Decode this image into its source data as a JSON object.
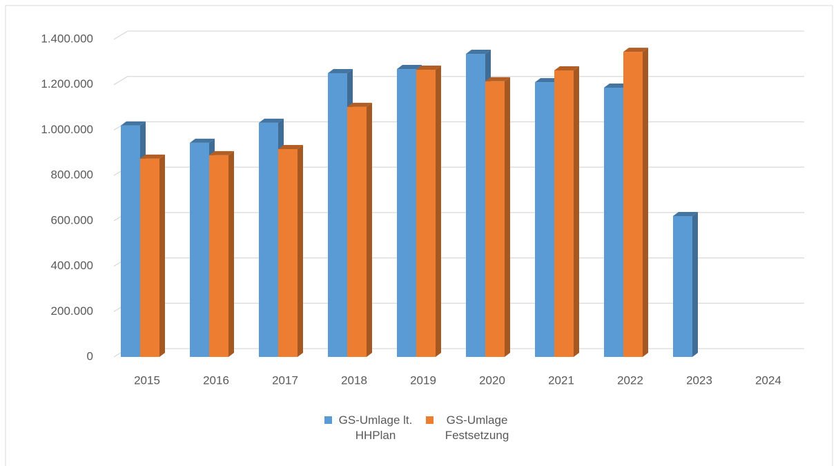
{
  "chart_data": {
    "type": "bar3d",
    "categories": [
      "2015",
      "2016",
      "2017",
      "2018",
      "2019",
      "2020",
      "2021",
      "2022",
      "2023",
      "2024"
    ],
    "series": [
      {
        "name": "GS-Umlage lt. HHPlan",
        "color": "#5b9bd5",
        "values": [
          1020000,
          944000,
          1032000,
          1251000,
          1269000,
          1336000,
          1211000,
          1187000,
          621000,
          null
        ]
      },
      {
        "name": "GS-Umlage Festsetzung",
        "color": "#ed7d31",
        "values": [
          874000,
          889000,
          916000,
          1102000,
          1266000,
          1215000,
          1263000,
          1345000,
          null,
          null
        ]
      }
    ],
    "ylim": [
      0,
      1400000
    ],
    "yticks": [
      0,
      {
        "value": 200000,
        "label": "200.000"
      },
      {
        "value": 400000,
        "label": "400.000"
      },
      {
        "value": 600000,
        "label": "600.000"
      },
      {
        "value": 800000,
        "label": "800.000"
      },
      {
        "value": 1000000,
        "label": "1.000.000"
      },
      {
        "value": 1200000,
        "label": "1.200.000"
      },
      {
        "value": 1400000,
        "label": "1.400.000"
      }
    ],
    "grid": true,
    "legend": "bottom"
  }
}
